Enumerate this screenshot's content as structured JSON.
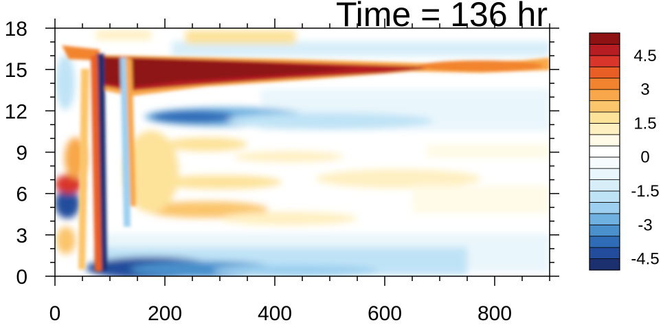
{
  "chart_data": {
    "type": "heatmap",
    "title": "Time = 136 hr",
    "xlabel": "",
    "ylabel": "",
    "xlim": [
      0,
      900
    ],
    "ylim": [
      0,
      18
    ],
    "x_ticks": [
      0,
      200,
      400,
      600,
      800
    ],
    "y_ticks": [
      0,
      3,
      6,
      9,
      12,
      15,
      18
    ],
    "colorbar": {
      "levels": [
        -5,
        -4.5,
        -4,
        -3.5,
        -3,
        -2.5,
        -2,
        -1.5,
        -1,
        -0.5,
        0,
        0.5,
        1,
        1.5,
        2,
        2.5,
        3,
        3.5,
        4,
        4.5,
        5
      ],
      "labels": [
        "-4.5",
        "-3",
        "-1.5",
        "0",
        "1.5",
        "3",
        "4.5"
      ],
      "label_values": [
        -4.5,
        -3,
        -1.5,
        0,
        1.5,
        3,
        4.5
      ],
      "colors": [
        "#1c2f6e",
        "#234d9c",
        "#2f6cb8",
        "#4a90cc",
        "#6fb1e0",
        "#9dd0f0",
        "#bfe3f6",
        "#d7eef9",
        "#e9f6fc",
        "#f6fbfe",
        "#ffffff",
        "#fffbe8",
        "#fff0c2",
        "#fde29a",
        "#fbc56c",
        "#f8a74a",
        "#f2842f",
        "#e95e25",
        "#d9352a",
        "#b51d22",
        "#8e1214"
      ]
    },
    "features": [
      {
        "name": "upper warm band",
        "x0": 80,
        "x1": 900,
        "y_center": 15.2,
        "peak": 6
      },
      {
        "name": "lower cold band",
        "x0": 80,
        "x1": 700,
        "y_center": 0.7,
        "peak": -5.5
      },
      {
        "name": "mid cold band",
        "x0": 120,
        "x1": 650,
        "y_center": 11.7,
        "peak": -3
      }
    ]
  }
}
